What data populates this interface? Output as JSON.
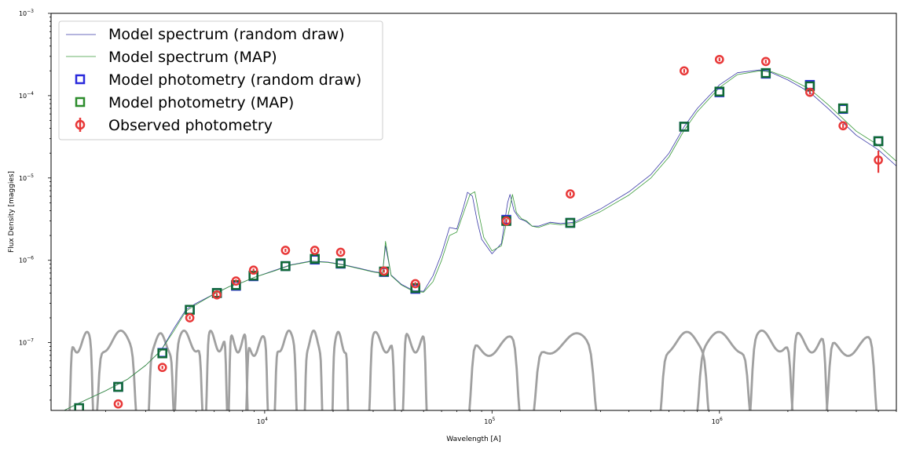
{
  "chart_data": {
    "type": "line",
    "xlabel": "Wavelength [A]",
    "ylabel": "Flux Density [maggies]",
    "xscale": "log",
    "yscale": "log",
    "xlim": [
      1150,
      6000000
    ],
    "ylim": [
      1.5e-08,
      0.001
    ],
    "x_tick_labels": [
      {
        "value": 10000,
        "base": "10",
        "exp": "4"
      },
      {
        "value": 100000,
        "base": "10",
        "exp": "5"
      },
      {
        "value": 1000000,
        "base": "10",
        "exp": "6"
      }
    ],
    "y_tick_labels": [
      {
        "value": 1e-07,
        "base": "10",
        "exp": "−7"
      },
      {
        "value": 1e-06,
        "base": "10",
        "exp": "−6"
      },
      {
        "value": 1e-05,
        "base": "10",
        "exp": "−5"
      },
      {
        "value": 0.0001,
        "base": "10",
        "exp": "−4"
      },
      {
        "value": 0.001,
        "base": "10",
        "exp": "−3"
      }
    ],
    "legend_position": "upper-left",
    "grid": false,
    "colors": {
      "spec_random": "#3a3aa8",
      "spec_map": "#3a9a3a",
      "phot_random": "#2a2adc",
      "phot_map": "#2c8c2c",
      "phot_map_edge": "#0f6a35",
      "observed": "#e83838",
      "filters": "#a0a0a0"
    },
    "series": [
      {
        "name": "Model spectrum (random draw)",
        "kind": "line",
        "x": [
          1250,
          1500,
          2000,
          2500,
          3000,
          3500,
          4000,
          4500,
          5000,
          6000,
          7000,
          8000,
          9000,
          11000,
          13000,
          16000,
          19000,
          22000,
          26000,
          30000,
          33000,
          34000,
          36000,
          40000,
          45000,
          50000,
          55000,
          60000,
          65000,
          70000,
          75000,
          78000,
          82000,
          86000,
          90000,
          100000,
          110000,
          117000,
          120000,
          125000,
          132000,
          140000,
          150000,
          160000,
          180000,
          200000,
          230000,
          300000,
          400000,
          500000,
          600000,
          700000,
          800000,
          1000000,
          1200000,
          1500000,
          1700000,
          2000000,
          2500000,
          3000000,
          4000000,
          5000000,
          6000000
        ],
        "y": [
          1.4e-08,
          1.8e-08,
          2.6e-08,
          3.6e-08,
          5.3e-08,
          8e-08,
          1.5e-07,
          2.5e-07,
          3e-07,
          3.9e-07,
          4.8e-07,
          5.4e-07,
          6.2e-07,
          7.5e-07,
          8.8e-07,
          9.8e-07,
          9.5e-07,
          8.9e-07,
          8e-07,
          7.3e-07,
          7e-07,
          1.5e-06,
          6.6e-07,
          5.1e-07,
          4.3e-07,
          4.2e-07,
          6.5e-07,
          1.2e-06,
          2.5e-06,
          2.4e-06,
          4.5e-06,
          6.7e-06,
          6e-06,
          3e-06,
          1.8e-06,
          1.2e-06,
          1.6e-06,
          5e-06,
          6.3e-06,
          4e-06,
          3.2e-06,
          3e-06,
          2.6e-06,
          2.6e-06,
          2.9e-06,
          2.8e-06,
          2.9e-06,
          4.2e-06,
          6.8e-06,
          1.1e-05,
          2e-05,
          4.2e-05,
          7e-05,
          0.000135,
          0.00019,
          0.000205,
          0.00019,
          0.000155,
          0.00011,
          7e-05,
          3.3e-05,
          2.2e-05,
          1.4e-05
        ]
      },
      {
        "name": "Model spectrum (MAP)",
        "kind": "line",
        "x": [
          1250,
          1500,
          2000,
          2500,
          3000,
          3500,
          4000,
          4500,
          5000,
          6000,
          7000,
          8000,
          9000,
          11000,
          13000,
          16000,
          19000,
          22000,
          26000,
          30000,
          33000,
          34000,
          36000,
          40000,
          45000,
          50000,
          55000,
          60000,
          65000,
          70000,
          75000,
          80000,
          84000,
          88000,
          92000,
          100000,
          110000,
          120000,
          123000,
          128000,
          135000,
          142000,
          150000,
          160000,
          180000,
          200000,
          230000,
          300000,
          400000,
          500000,
          600000,
          700000,
          800000,
          1000000,
          1200000,
          1500000,
          1700000,
          2000000,
          2500000,
          3000000,
          4000000,
          5000000,
          6000000
        ],
        "y": [
          1.4e-08,
          1.8e-08,
          2.6e-08,
          3.6e-08,
          5.3e-08,
          8e-08,
          1.4e-07,
          2.4e-07,
          2.9e-07,
          3.9e-07,
          4.8e-07,
          5.4e-07,
          6.2e-07,
          7.4e-07,
          8.7e-07,
          9.7e-07,
          9.4e-07,
          8.8e-07,
          7.9e-07,
          7.2e-07,
          6.9e-07,
          1.7e-06,
          6.5e-07,
          5e-07,
          4.2e-07,
          4.1e-07,
          5.5e-07,
          1e-06,
          2e-06,
          2.2e-06,
          3.8e-06,
          6.3e-06,
          6.8e-06,
          3.4e-06,
          1.9e-06,
          1.3e-06,
          1.5e-06,
          4.5e-06,
          6.3e-06,
          3.8e-06,
          3.2e-06,
          3e-06,
          2.6e-06,
          2.5e-06,
          2.8e-06,
          2.7e-06,
          2.8e-06,
          3.9e-06,
          6.2e-06,
          1e-05,
          1.8e-05,
          3.8e-05,
          6.4e-05,
          0.000125,
          0.00018,
          0.0002,
          0.000195,
          0.000165,
          0.00012,
          7.8e-05,
          3.7e-05,
          2.5e-05,
          1.6e-05
        ]
      },
      {
        "name": "Model photometry (random draw)",
        "kind": "marker-square",
        "x": [
          1528,
          2271,
          3551,
          4686,
          6166,
          7480,
          8932,
          12350,
          16620,
          21590,
          33500,
          46000,
          115600,
          220900,
          700000,
          1000000,
          1600000,
          2500000,
          3500000,
          5000000
        ],
        "y": [
          1.6e-08,
          2.9e-08,
          7.5e-08,
          2.5e-07,
          4e-07,
          4.9e-07,
          6.4e-07,
          8.5e-07,
          1.02e-06,
          9.1e-07,
          7.2e-07,
          4.5e-07,
          3.1e-06,
          2.85e-06,
          4.2e-05,
          0.00011,
          0.000185,
          0.000135,
          6.9e-05,
          2.8e-05
        ]
      },
      {
        "name": "Model photometry (MAP)",
        "kind": "marker-square",
        "x": [
          1528,
          2271,
          3551,
          4686,
          6166,
          7480,
          8932,
          12350,
          16620,
          21590,
          33500,
          46000,
          115600,
          220900,
          700000,
          1000000,
          1600000,
          2500000,
          3500000,
          5000000
        ],
        "y": [
          1.6e-08,
          2.9e-08,
          7.4e-08,
          2.5e-07,
          4e-07,
          5e-07,
          6.5e-07,
          8.5e-07,
          1.04e-06,
          9.2e-07,
          7.3e-07,
          4.6e-07,
          3e-06,
          2.85e-06,
          4.2e-05,
          0.000112,
          0.000188,
          0.00013,
          7e-05,
          2.8e-05
        ]
      },
      {
        "name": "Observed photometry",
        "kind": "errorbar-circle",
        "x": [
          2271,
          3551,
          4686,
          6166,
          7480,
          8932,
          12350,
          16620,
          21590,
          33500,
          46000,
          115600,
          220900,
          700000,
          1000000,
          1600000,
          2500000,
          3500000,
          5000000
        ],
        "y": [
          1.8e-08,
          5e-08,
          2e-07,
          3.8e-07,
          5.6e-07,
          7.6e-07,
          1.32e-06,
          1.32e-06,
          1.25e-06,
          7.4e-07,
          5.2e-07,
          3e-06,
          6.4e-06,
          0.0002,
          0.000275,
          0.00026,
          0.00011,
          4.3e-05,
          1.65e-05
        ],
        "yerr_rel": [
          0.03,
          0.03,
          0.03,
          0.02,
          0.02,
          0.03,
          0.03,
          0.03,
          0.03,
          0.03,
          0.04,
          0.05,
          0.05,
          0.05,
          0.05,
          0.05,
          0.06,
          0.06,
          0.3
        ]
      }
    ],
    "filter_curves": [
      {
        "lo": 1350,
        "hi": 1810,
        "peak": 1.35e-07
      },
      {
        "lo": 1750,
        "hi": 2850,
        "peak": 1.4e-07
      },
      {
        "lo": 3000,
        "hi": 4100,
        "peak": 1.3e-07
      },
      {
        "lo": 3900,
        "hi": 5500,
        "peak": 1.4e-07
      },
      {
        "lo": 5400,
        "hi": 7000,
        "peak": 1.4e-07
      },
      {
        "lo": 6800,
        "hi": 8600,
        "peak": 1.35e-07
      },
      {
        "lo": 8100,
        "hi": 10600,
        "peak": 1.2e-07
      },
      {
        "lo": 10800,
        "hi": 14200,
        "peak": 1.4e-07
      },
      {
        "lo": 14700,
        "hi": 18300,
        "peak": 1.4e-07
      },
      {
        "lo": 19500,
        "hi": 23700,
        "peak": 1.35e-07
      },
      {
        "lo": 28000,
        "hi": 38500,
        "peak": 1.35e-07
      },
      {
        "lo": 39500,
        "hi": 53000,
        "peak": 1.35e-07
      },
      {
        "lo": 75000,
        "hi": 140000,
        "peak": 1.2e-07
      },
      {
        "lo": 142000,
        "hi": 310000,
        "peak": 1.3e-07
      },
      {
        "lo": 520000,
        "hi": 950000,
        "peak": 1.35e-07
      },
      {
        "lo": 750000,
        "hi": 1450000,
        "peak": 1.35e-07
      },
      {
        "lo": 1300000,
        "hi": 2200000,
        "peak": 1.4e-07
      },
      {
        "lo": 2000000,
        "hi": 3100000,
        "peak": 1.35e-07
      },
      {
        "lo": 2800000,
        "hi": 5200000,
        "peak": 1.2e-07
      }
    ]
  }
}
